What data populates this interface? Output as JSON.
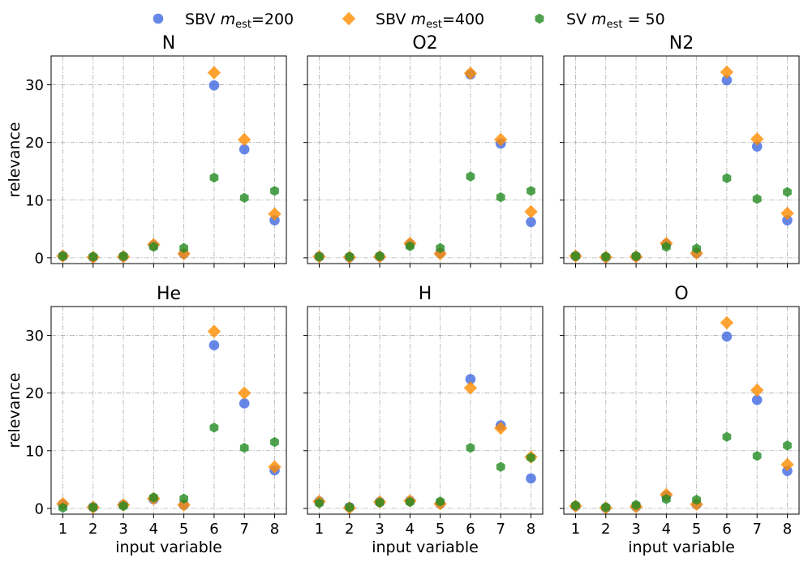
{
  "colors": {
    "sbv200": "#4169e1",
    "sbv400": "#ff8c00",
    "sv50": "#228b22"
  },
  "legend": {
    "entries": [
      {
        "key": "sbv200",
        "marker": "circle",
        "prefix": "SBV ",
        "var": "m",
        "sub": "est",
        "suffix": "=200"
      },
      {
        "key": "sbv400",
        "marker": "diamond",
        "prefix": "SBV ",
        "var": "m",
        "sub": "est",
        "suffix": "=400"
      },
      {
        "key": "sv50",
        "marker": "hexagon",
        "prefix": "SV ",
        "var": "m",
        "sub": "est",
        "suffix": " = 50"
      }
    ]
  },
  "chart_data": [
    {
      "type": "scatter",
      "title": "N",
      "ylabel": "relevance",
      "xlabel": "",
      "x": [
        1,
        2,
        3,
        4,
        5,
        6,
        7,
        8
      ],
      "ylim": [
        -1,
        35
      ],
      "yticks": [
        0,
        10,
        20,
        30
      ],
      "series": [
        {
          "key": "sbv200",
          "values": [
            0.3,
            0.1,
            0.2,
            2.2,
            0.7,
            29.9,
            18.8,
            6.5
          ]
        },
        {
          "key": "sbv400",
          "values": [
            0.3,
            0.1,
            0.2,
            2.3,
            0.7,
            32.1,
            20.5,
            7.6
          ]
        },
        {
          "key": "sv50",
          "values": [
            0.3,
            0.2,
            0.3,
            1.9,
            1.7,
            13.9,
            10.4,
            11.6
          ]
        }
      ]
    },
    {
      "type": "scatter",
      "title": "O2",
      "ylabel": "",
      "xlabel": "",
      "x": [
        1,
        2,
        3,
        4,
        5,
        6,
        7,
        8
      ],
      "ylim": [
        -1,
        35
      ],
      "yticks": [
        0,
        10,
        20,
        30
      ],
      "series": [
        {
          "key": "sbv200",
          "values": [
            0.2,
            0.1,
            0.2,
            2.4,
            0.8,
            31.8,
            19.8,
            6.2
          ]
        },
        {
          "key": "sbv400",
          "values": [
            0.2,
            0.1,
            0.2,
            2.5,
            0.7,
            32.0,
            20.5,
            8.0
          ]
        },
        {
          "key": "sv50",
          "values": [
            0.2,
            0.2,
            0.3,
            2.0,
            1.7,
            14.1,
            10.5,
            11.6
          ]
        }
      ]
    },
    {
      "type": "scatter",
      "title": "N2",
      "ylabel": "",
      "xlabel": "",
      "x": [
        1,
        2,
        3,
        4,
        5,
        6,
        7,
        8
      ],
      "ylim": [
        -1,
        35
      ],
      "yticks": [
        0,
        10,
        20,
        30
      ],
      "series": [
        {
          "key": "sbv200",
          "values": [
            0.3,
            0.1,
            0.2,
            2.4,
            0.8,
            30.8,
            19.3,
            6.5
          ]
        },
        {
          "key": "sbv400",
          "values": [
            0.3,
            0.1,
            0.2,
            2.5,
            0.8,
            32.2,
            20.6,
            7.7
          ]
        },
        {
          "key": "sv50",
          "values": [
            0.3,
            0.2,
            0.3,
            1.9,
            1.6,
            13.8,
            10.2,
            11.4
          ]
        }
      ]
    },
    {
      "type": "scatter",
      "title": "He",
      "ylabel": "relevance",
      "xlabel": "input variable",
      "x": [
        1,
        2,
        3,
        4,
        5,
        6,
        7,
        8
      ],
      "ylim": [
        -1,
        35
      ],
      "yticks": [
        0,
        10,
        20,
        30
      ],
      "series": [
        {
          "key": "sbv200",
          "values": [
            0.7,
            0.2,
            0.6,
            1.6,
            0.6,
            28.3,
            18.2,
            6.6
          ]
        },
        {
          "key": "sbv400",
          "values": [
            0.8,
            0.2,
            0.6,
            1.7,
            0.6,
            30.7,
            20.0,
            7.2
          ]
        },
        {
          "key": "sv50",
          "values": [
            0.1,
            0.2,
            0.4,
            1.9,
            1.7,
            14.0,
            10.5,
            11.5
          ]
        }
      ]
    },
    {
      "type": "scatter",
      "title": "H",
      "ylabel": "",
      "xlabel": "input variable",
      "x": [
        1,
        2,
        3,
        4,
        5,
        6,
        7,
        8
      ],
      "ylim": [
        -1,
        35
      ],
      "yticks": [
        0,
        10,
        20,
        30
      ],
      "series": [
        {
          "key": "sbv200",
          "values": [
            1.2,
            0.2,
            1.1,
            1.3,
            0.8,
            22.4,
            14.4,
            5.2
          ]
        },
        {
          "key": "sbv400",
          "values": [
            1.2,
            0.1,
            1.1,
            1.3,
            0.8,
            20.9,
            13.9,
            8.9
          ]
        },
        {
          "key": "sv50",
          "values": [
            0.9,
            0.2,
            1.0,
            1.1,
            1.2,
            10.5,
            7.2,
            8.8
          ]
        }
      ]
    },
    {
      "type": "scatter",
      "title": "O",
      "ylabel": "",
      "xlabel": "input variable",
      "x": [
        1,
        2,
        3,
        4,
        5,
        6,
        7,
        8
      ],
      "ylim": [
        -1,
        35
      ],
      "yticks": [
        0,
        10,
        20,
        30
      ],
      "series": [
        {
          "key": "sbv200",
          "values": [
            0.4,
            0.1,
            0.3,
            2.2,
            0.7,
            29.8,
            18.8,
            6.5
          ]
        },
        {
          "key": "sbv400",
          "values": [
            0.4,
            0.1,
            0.3,
            2.4,
            0.7,
            32.2,
            20.5,
            7.6
          ]
        },
        {
          "key": "sv50",
          "values": [
            0.5,
            0.2,
            0.6,
            1.6,
            1.5,
            12.4,
            9.1,
            10.9
          ]
        }
      ]
    }
  ]
}
